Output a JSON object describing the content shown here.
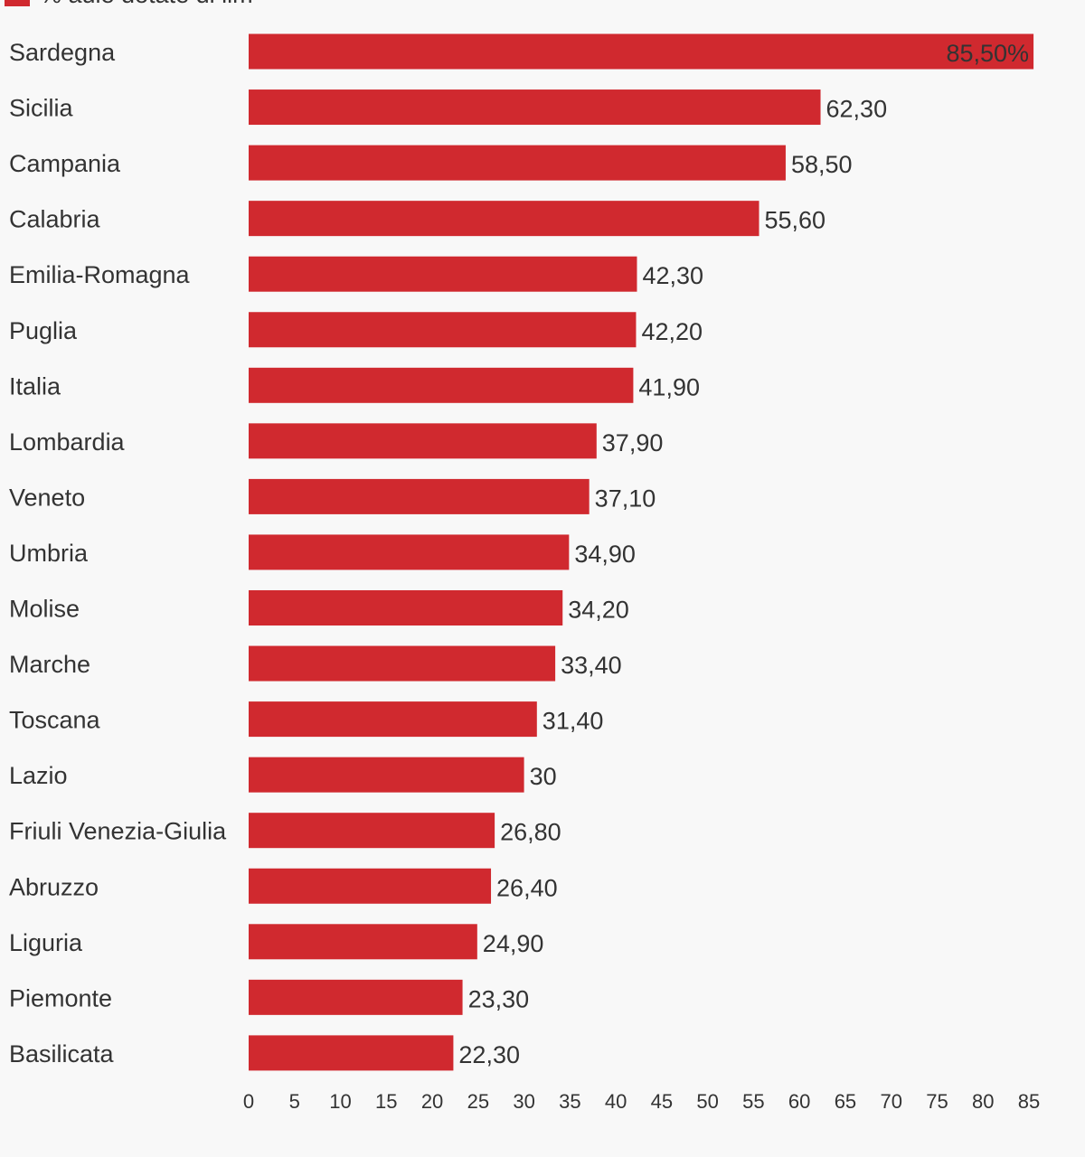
{
  "chart_data": {
    "type": "bar",
    "orientation": "horizontal",
    "legend": {
      "label": "% aule dotate di lim",
      "placement": "top-left"
    },
    "categories": [
      "Sardegna",
      "Sicilia",
      "Campania",
      "Calabria",
      "Emilia-Romagna",
      "Puglia",
      "Italia",
      "Lombardia",
      "Veneto",
      "Umbria",
      "Molise",
      "Marche",
      "Toscana",
      "Lazio",
      "Friuli Venezia-Giulia",
      "Abruzzo",
      "Liguria",
      "Piemonte",
      "Basilicata"
    ],
    "series": [
      {
        "name": "% aule dotate di lim",
        "color": "#d0292f",
        "values": [
          85.5,
          62.3,
          58.5,
          55.6,
          42.3,
          42.2,
          41.9,
          37.9,
          37.1,
          34.9,
          34.2,
          33.4,
          31.4,
          30,
          26.8,
          26.4,
          24.9,
          23.3,
          22.3
        ],
        "data_labels": [
          "85,50%",
          "62,30",
          "58,50",
          "55,60",
          "42,30",
          "42,20",
          "41,90",
          "37,90",
          "37,10",
          "34,90",
          "34,20",
          "33,40",
          "31,40",
          "30",
          "26,80",
          "26,40",
          "24,90",
          "23,30",
          "22,30"
        ]
      }
    ],
    "xlim": [
      0,
      85
    ],
    "x_ticks": [
      "0",
      "5",
      "10",
      "15",
      "20",
      "25",
      "30",
      "35",
      "40",
      "45",
      "50",
      "55",
      "60",
      "65",
      "70",
      "75",
      "80",
      "85"
    ],
    "grid": false
  }
}
